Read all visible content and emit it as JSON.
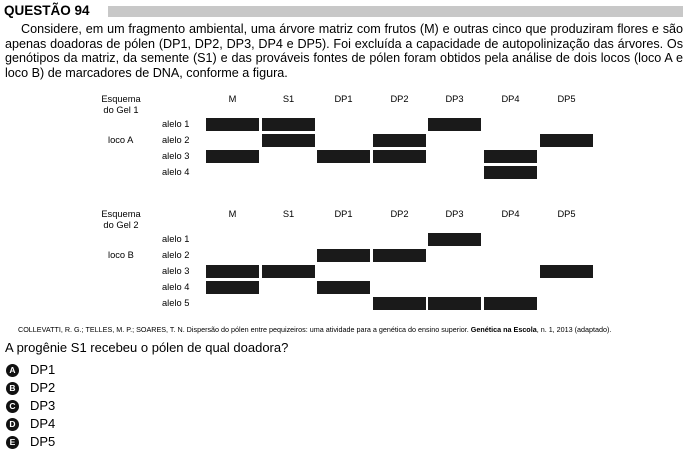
{
  "header": {
    "title": "QUESTÃO 94"
  },
  "intro": "Considere, em um fragmento ambiental, uma árvore matriz com frutos (M) e outras cinco que produziram flores e são apenas doadoras de pólen (DP1, DP2, DP3, DP4 e DP5). Foi excluída a capacidade de autopolinização das árvores. Os genótipos da matriz, da semente (S1) e das prováveis fontes de pólen foram obtidos pela análise de dois locos (loco A e loco B) de marcadores de DNA, conforme a figura.",
  "columns": [
    "M",
    "S1",
    "DP1",
    "DP2",
    "DP3",
    "DP4",
    "DP5"
  ],
  "gels": [
    {
      "scheme_label": "Esquema do Gel 1",
      "scheme_line1": "Esquema",
      "scheme_line2": "do Gel 1",
      "locus": "loco A",
      "alleles": [
        "alelo 1",
        "alelo 2",
        "alelo 3",
        "alelo 4"
      ],
      "bands": [
        [
          "M",
          "S1",
          "DP3"
        ],
        [
          "S1",
          "DP2",
          "DP5"
        ],
        [
          "M",
          "DP1",
          "DP2",
          "DP4"
        ],
        [
          "DP4"
        ]
      ]
    },
    {
      "scheme_label": "Esquema do Gel 2",
      "scheme_line1": "Esquema",
      "scheme_line2": "do Gel 2",
      "locus": "loco B",
      "alleles": [
        "alelo 1",
        "alelo 2",
        "alelo 3",
        "alelo 4",
        "alelo 5"
      ],
      "bands": [
        [
          "DP3"
        ],
        [
          "DP1",
          "DP2"
        ],
        [
          "M",
          "S1",
          "DP5"
        ],
        [
          "M",
          "DP1"
        ],
        [
          "DP2",
          "DP3",
          "DP4"
        ]
      ]
    }
  ],
  "citation": {
    "text": "COLLEVATTI, R. G.; TELLES, M. P.; SOARES, T. N. Dispersão do pólen entre pequizeiros: uma atividade para a genética do ensino superior.",
    "journal": "Genética na Escola",
    "rest": ", n. 1, 2013 (adaptado)."
  },
  "question": "A progênie S1 recebeu o pólen de qual doadora?",
  "options": [
    {
      "letter": "A",
      "text": "DP1"
    },
    {
      "letter": "B",
      "text": "DP2"
    },
    {
      "letter": "C",
      "text": "DP3"
    },
    {
      "letter": "D",
      "text": "DP4"
    },
    {
      "letter": "E",
      "text": "DP5"
    }
  ]
}
